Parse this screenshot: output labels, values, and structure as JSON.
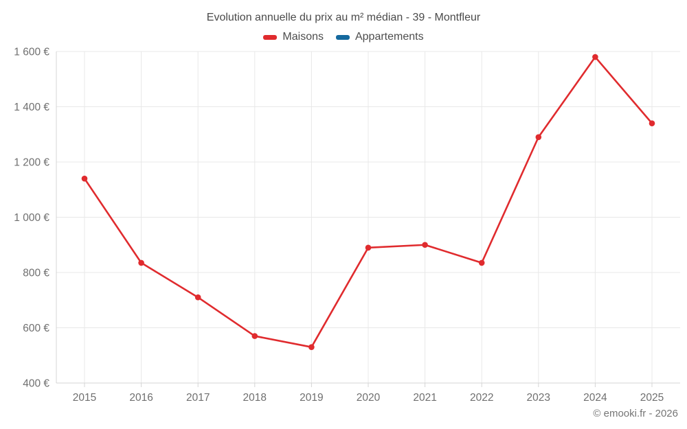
{
  "title": "Evolution annuelle du prix au m² médian - 39 - Montfleur",
  "attribution": "© emooki.fr - 2026",
  "legend": [
    {
      "label": "Maisons",
      "color": "#e02b2e"
    },
    {
      "label": "Appartements",
      "color": "#15699e"
    }
  ],
  "chart_data": {
    "type": "line",
    "title": "Evolution annuelle du prix au m² médian - 39 - Montfleur",
    "x": [
      2015,
      2016,
      2017,
      2018,
      2019,
      2020,
      2021,
      2022,
      2023,
      2024,
      2025
    ],
    "series": [
      {
        "name": "Maisons",
        "color": "#e02b2e",
        "values": [
          1140,
          835,
          710,
          570,
          530,
          890,
          900,
          835,
          1290,
          1580,
          1340
        ]
      },
      {
        "name": "Appartements",
        "color": "#15699e",
        "values": []
      }
    ],
    "xlabel": "",
    "ylabel": "",
    "ylim": [
      400,
      1600
    ],
    "ytick_step": 200,
    "yticks": [
      400,
      600,
      800,
      1000,
      1200,
      1400,
      1600
    ],
    "ytick_labels": [
      "400 €",
      "600 €",
      "800 €",
      "1 000 €",
      "1 200 €",
      "1 400 €",
      "1 600 €"
    ],
    "xtick_labels": [
      "2015",
      "2016",
      "2017",
      "2018",
      "2019",
      "2020",
      "2021",
      "2022",
      "2023",
      "2024",
      "2025"
    ],
    "grid": true,
    "legend_position": "top",
    "colors": {
      "grid_line": "#e8e8e8",
      "axis_line": "#d4d4d4",
      "tick_label": "#6f6f6f",
      "title_text": "#4a4a4a",
      "legend_text": "#4d4d4d",
      "attribution_text": "#757575"
    }
  }
}
